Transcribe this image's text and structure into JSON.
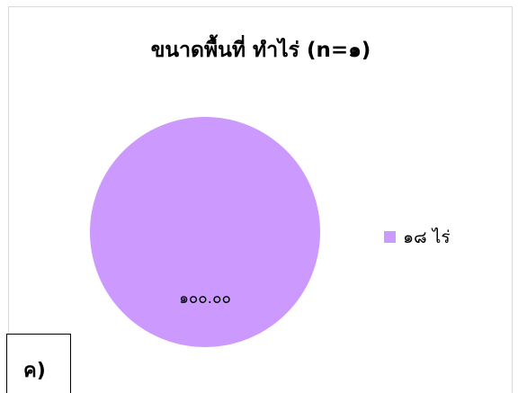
{
  "chart_data": {
    "type": "pie",
    "title": "ขนาดพื้นที่ ทำไร่ (n=๑)",
    "slices": [
      {
        "label": "๑๘ ไร่",
        "value": 100.0,
        "display_value": "๑๐๐.๐๐",
        "color": "#cc99ff"
      }
    ],
    "legend_position": "right",
    "grid": false
  },
  "panel_label": "ค)"
}
